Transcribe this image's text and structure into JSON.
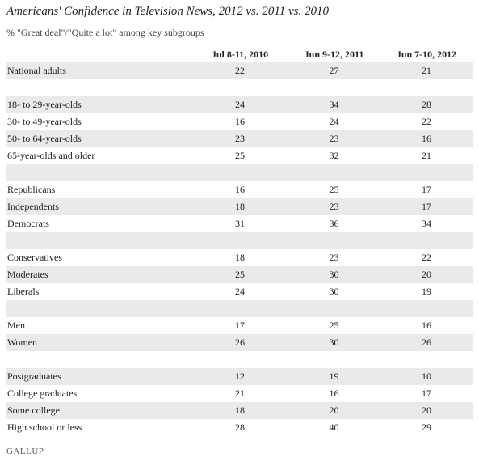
{
  "chart_data": {
    "type": "table",
    "title": "Americans' Confidence in Television News, 2012 vs. 2011 vs. 2010",
    "subtitle": "% \"Great deal\"/\"Quite a lot\" among key subgroups",
    "columns": [
      "Jul 8-11, 2010",
      "Jun 9-12, 2011",
      "Jun 7-10, 2012"
    ],
    "rows": [
      {
        "label": "National adults",
        "values": [
          "22",
          "27",
          "21"
        ],
        "shade": true
      },
      {
        "label": "",
        "values": [
          "",
          "",
          ""
        ],
        "shade": false
      },
      {
        "label": "18- to 29-year-olds",
        "values": [
          "24",
          "34",
          "28"
        ],
        "shade": true
      },
      {
        "label": "30- to 49-year-olds",
        "values": [
          "16",
          "24",
          "22"
        ],
        "shade": false
      },
      {
        "label": "50- to 64-year-olds",
        "values": [
          "23",
          "23",
          "16"
        ],
        "shade": true
      },
      {
        "label": "65-year-olds and older",
        "values": [
          "25",
          "32",
          "21"
        ],
        "shade": false
      },
      {
        "label": "",
        "values": [
          "",
          "",
          ""
        ],
        "shade": true
      },
      {
        "label": "Republicans",
        "values": [
          "16",
          "25",
          "17"
        ],
        "shade": false
      },
      {
        "label": "Independents",
        "values": [
          "18",
          "23",
          "17"
        ],
        "shade": true
      },
      {
        "label": "Democrats",
        "values": [
          "31",
          "36",
          "34"
        ],
        "shade": false
      },
      {
        "label": "",
        "values": [
          "",
          "",
          ""
        ],
        "shade": true
      },
      {
        "label": "Conservatives",
        "values": [
          "18",
          "23",
          "22"
        ],
        "shade": false
      },
      {
        "label": "Moderates",
        "values": [
          "25",
          "30",
          "20"
        ],
        "shade": true
      },
      {
        "label": "Liberals",
        "values": [
          "24",
          "30",
          "19"
        ],
        "shade": false
      },
      {
        "label": "",
        "values": [
          "",
          "",
          ""
        ],
        "shade": true
      },
      {
        "label": "Men",
        "values": [
          "17",
          "25",
          "16"
        ],
        "shade": false
      },
      {
        "label": "Women",
        "values": [
          "26",
          "30",
          "26"
        ],
        "shade": true
      },
      {
        "label": "",
        "values": [
          "",
          "",
          ""
        ],
        "shade": false
      },
      {
        "label": "Postgraduates",
        "values": [
          "12",
          "19",
          "10"
        ],
        "shade": true
      },
      {
        "label": "College graduates",
        "values": [
          "21",
          "16",
          "17"
        ],
        "shade": false
      },
      {
        "label": "Some college",
        "values": [
          "18",
          "20",
          "20"
        ],
        "shade": true
      },
      {
        "label": "High school or less",
        "values": [
          "28",
          "40",
          "29"
        ],
        "shade": false
      }
    ]
  },
  "branding": {
    "logo_text": "GALLUP"
  },
  "colors": {
    "shade": "#eaeaea",
    "text": "#222222"
  }
}
